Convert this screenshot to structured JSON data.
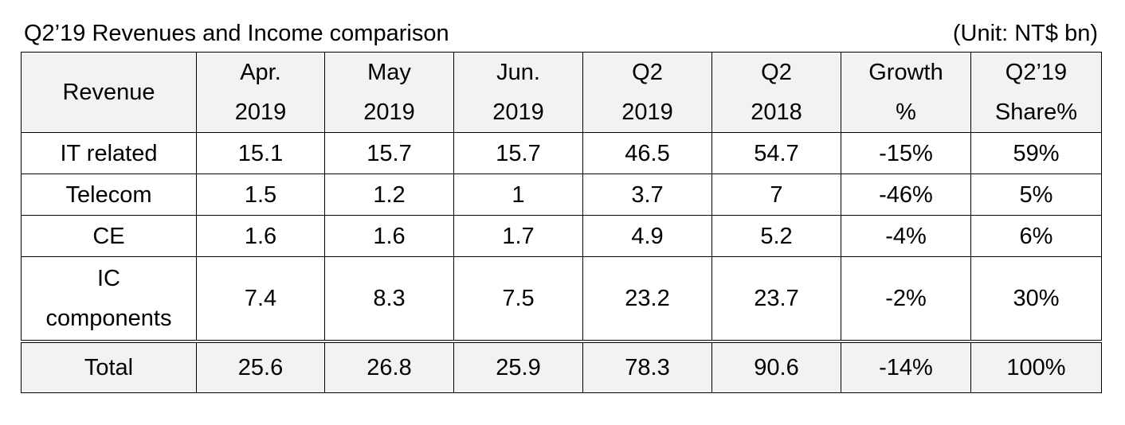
{
  "title": "Q2’19 Revenues and Income comparison",
  "unit": "(Unit: NT$ bn)",
  "headers": [
    {
      "line1": "Revenue",
      "line2": ""
    },
    {
      "line1": "Apr.",
      "line2": "2019"
    },
    {
      "line1": "May",
      "line2": "2019"
    },
    {
      "line1": "Jun.",
      "line2": "2019"
    },
    {
      "line1": "Q2",
      "line2": "2019"
    },
    {
      "line1": "Q2",
      "line2": "2018"
    },
    {
      "line1": "Growth",
      "line2": "%"
    },
    {
      "line1": "Q2’19",
      "line2": "Share%"
    }
  ],
  "rows": [
    {
      "label": "IT related",
      "label2": "",
      "cells": [
        "15.1",
        "15.7",
        "15.7",
        "46.5",
        "54.7",
        "-15%",
        "59%"
      ]
    },
    {
      "label": "Telecom",
      "label2": "",
      "cells": [
        "1.5",
        "1.2",
        "1",
        "3.7",
        "7",
        "-46%",
        "5%"
      ]
    },
    {
      "label": "CE",
      "label2": "",
      "cells": [
        "1.6",
        "1.6",
        "1.7",
        "4.9",
        "5.2",
        "-4%",
        "6%"
      ]
    },
    {
      "label": "IC",
      "label2": "components",
      "cells": [
        "7.4",
        "8.3",
        "7.5",
        "23.2",
        "23.7",
        "-2%",
        "30%"
      ]
    },
    {
      "label": "Total",
      "label2": "",
      "cells": [
        "25.6",
        "26.8",
        "25.9",
        "78.3",
        "90.6",
        "-14%",
        "100%"
      ]
    }
  ]
}
